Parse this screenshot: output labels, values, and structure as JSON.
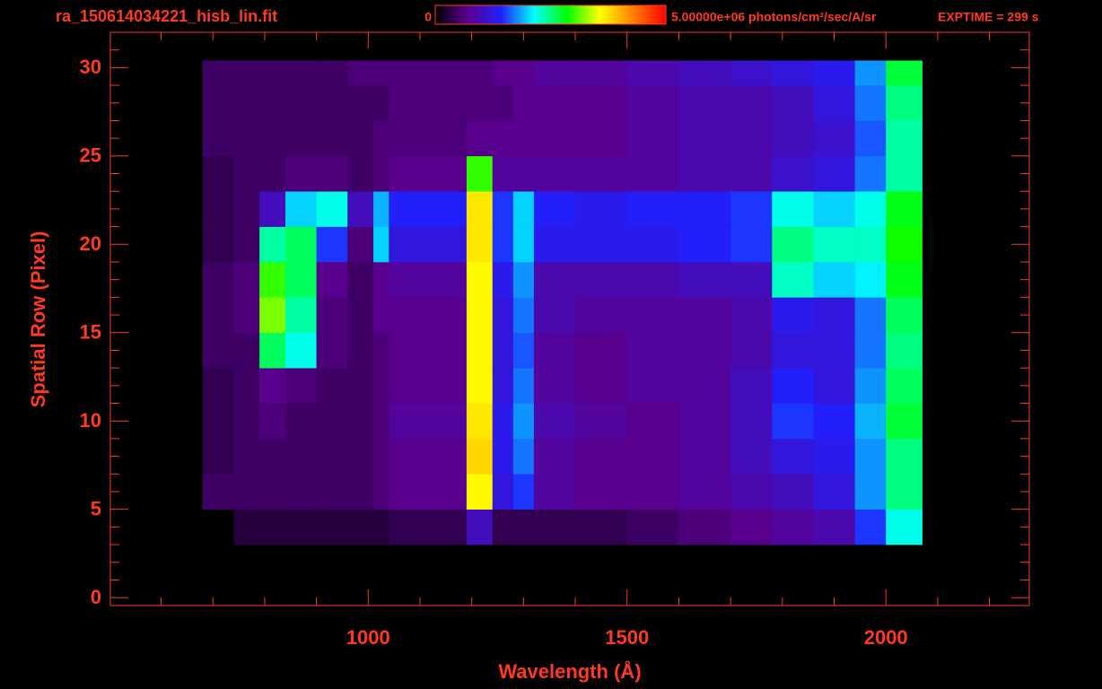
{
  "chart_data": {
    "type": "heatmap",
    "title": "ra_150614034221_hisb_lin.fit",
    "exposure": "EXPTIME = 299 s",
    "x_label": "Wavelength (Å)",
    "y_label": "Spatial Row (Pixel)",
    "xlim": [
      502,
      2277
    ],
    "ylim": [
      -0.45,
      32.0
    ],
    "xticks": [
      1000,
      1500,
      2000
    ],
    "xminorticks": [
      600,
      700,
      800,
      900,
      1100,
      1200,
      1300,
      1400,
      1600,
      1700,
      1800,
      1900,
      2100,
      2200
    ],
    "yticks": [
      0,
      5,
      10,
      15,
      20,
      25,
      30
    ],
    "yminorticks": [
      1,
      2,
      3,
      4,
      6,
      7,
      8,
      9,
      11,
      12,
      13,
      14,
      16,
      17,
      18,
      19,
      21,
      22,
      23,
      24,
      26,
      27,
      28,
      29,
      31,
      32
    ],
    "zlim": [
      0,
      5000000
    ],
    "zticks": [
      0,
      {
        "value": 5000000,
        "label": "5.00000e+06 photons/cm²/sec/A/sr"
      }
    ],
    "colormap": [
      "#000000",
      "#5a0090",
      "#2020ff",
      "#00ffff",
      "#00ff00",
      "#ffff00",
      "#ff8000",
      "#ff0000"
    ],
    "color": "#ff3a1e",
    "x_edges": [
      680,
      740,
      790,
      840,
      900,
      960,
      1010,
      1040,
      1190,
      1240,
      1280,
      1320,
      1400,
      1500,
      1600,
      1700,
      1780,
      1860,
      1940,
      2000,
      2070
    ],
    "y_edges": [
      3,
      5,
      7,
      9,
      11,
      13,
      15,
      17,
      19,
      21,
      23,
      25,
      27,
      29,
      30.4
    ],
    "z": [
      [
        0,
        300000,
        300000,
        300000,
        300000,
        300000,
        300000,
        400000,
        1000000,
        400000,
        400000,
        400000,
        400000,
        500000,
        600000,
        700000,
        800000,
        900000,
        1500000,
        2200000
      ],
      [
        500000,
        500000,
        500000,
        500000,
        500000,
        500000,
        600000,
        700000,
        3600000,
        1200000,
        1500000,
        800000,
        700000,
        700000,
        800000,
        900000,
        1000000,
        1200000,
        1800000,
        2500000
      ],
      [
        400000,
        500000,
        500000,
        500000,
        500000,
        500000,
        600000,
        700000,
        3800000,
        1300000,
        1700000,
        800000,
        700000,
        700000,
        800000,
        1000000,
        1200000,
        1300000,
        1800000,
        2500000
      ],
      [
        400000,
        500000,
        600000,
        500000,
        500000,
        500000,
        600000,
        800000,
        3700000,
        1300000,
        1800000,
        900000,
        800000,
        700000,
        800000,
        1000000,
        1500000,
        1400000,
        1900000,
        2700000
      ],
      [
        400000,
        500000,
        700000,
        600000,
        500000,
        500000,
        600000,
        700000,
        3600000,
        1200000,
        1700000,
        800000,
        700000,
        800000,
        800000,
        1000000,
        1400000,
        1200000,
        1800000,
        2600000
      ],
      [
        500000,
        500000,
        2600000,
        2200000,
        600000,
        500000,
        600000,
        700000,
        3600000,
        1200000,
        1600000,
        800000,
        700000,
        800000,
        800000,
        900000,
        1200000,
        1200000,
        1700000,
        2500000
      ],
      [
        500000,
        600000,
        3200000,
        2400000,
        600000,
        500000,
        700000,
        700000,
        3600000,
        1200000,
        1700000,
        900000,
        800000,
        800000,
        800000,
        900000,
        1300000,
        1200000,
        1700000,
        2600000
      ],
      [
        500000,
        600000,
        3000000,
        2600000,
        700000,
        500000,
        700000,
        800000,
        3600000,
        1300000,
        1800000,
        900000,
        900000,
        900000,
        1000000,
        1000000,
        2300000,
        2000000,
        2100000,
        2800000
      ],
      [
        400000,
        500000,
        2400000,
        2600000,
        1500000,
        600000,
        2000000,
        1200000,
        3700000,
        1500000,
        2000000,
        1300000,
        1300000,
        1300000,
        1400000,
        1500000,
        2500000,
        2300000,
        2300000,
        2900000
      ],
      [
        400000,
        500000,
        1000000,
        2000000,
        2200000,
        1000000,
        1900000,
        1400000,
        3700000,
        1500000,
        2000000,
        1400000,
        1300000,
        1400000,
        1400000,
        1500000,
        2200000,
        2000000,
        2200000,
        2800000
      ],
      [
        400000,
        500000,
        500000,
        600000,
        600000,
        500000,
        600000,
        700000,
        3000000,
        800000,
        800000,
        800000,
        800000,
        800000,
        900000,
        900000,
        1100000,
        1200000,
        1700000,
        2400000
      ],
      [
        500000,
        500000,
        500000,
        500000,
        500000,
        500000,
        600000,
        600000,
        700000,
        700000,
        700000,
        700000,
        700000,
        800000,
        900000,
        900000,
        1000000,
        1100000,
        1600000,
        2400000
      ],
      [
        500000,
        500000,
        500000,
        500000,
        500000,
        500000,
        500000,
        600000,
        600000,
        600000,
        700000,
        700000,
        700000,
        800000,
        900000,
        900000,
        1000000,
        1200000,
        1700000,
        2500000
      ],
      [
        500000,
        500000,
        500000,
        500000,
        500000,
        600000,
        600000,
        600000,
        600000,
        700000,
        700000,
        800000,
        800000,
        900000,
        1000000,
        1100000,
        1200000,
        1300000,
        1800000,
        2700000
      ]
    ]
  }
}
